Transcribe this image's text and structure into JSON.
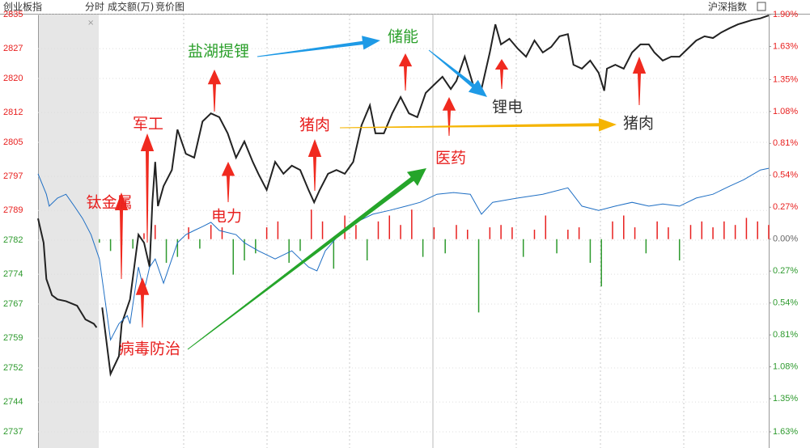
{
  "chart_data": {
    "type": "line",
    "title": "创业板指",
    "header": [
      "分时",
      "成交额(万)",
      "竞价图"
    ],
    "index_button": "沪深指数",
    "xlim": [
      -22,
      240
    ],
    "ylim": [
      2737,
      2835
    ],
    "yticks": [
      2835,
      2827,
      2820,
      2812,
      2805,
      2797,
      2789,
      2782,
      2774,
      2767,
      2759,
      2752,
      2744,
      2737
    ],
    "y2lim": [
      -1.63,
      1.9
    ],
    "y2ticks": [
      {
        "value": 1.9,
        "label": "1.90%"
      },
      {
        "value": 1.63,
        "label": "1.63%"
      },
      {
        "value": 1.35,
        "label": "1.35%"
      },
      {
        "value": 1.08,
        "label": "1.08%"
      },
      {
        "value": 0.81,
        "label": "0.81%"
      },
      {
        "value": 0.54,
        "label": "0.54%"
      },
      {
        "value": 0.27,
        "label": "0.27%"
      },
      {
        "value": 0,
        "label": "0.00%"
      },
      {
        "value": -0.27,
        "label": "0.27%"
      },
      {
        "value": -0.54,
        "label": "0.54%"
      },
      {
        "value": -0.81,
        "label": "0.81%"
      },
      {
        "value": -1.08,
        "label": "1.08%"
      },
      {
        "value": -1.35,
        "label": "1.35%"
      },
      {
        "value": -1.63,
        "label": "1.63%"
      }
    ],
    "up_color": "#e8201f",
    "down_color": "#2e9a2e",
    "flat_color": "#666666",
    "series": [
      {
        "name": "创业板指",
        "color": "#222222",
        "x": [
          -22,
          -20,
          -19,
          -17,
          -15,
          -12,
          -8,
          -5,
          -2,
          -1,
          0,
          1,
          4,
          7,
          8,
          11,
          14,
          16,
          18,
          19,
          20,
          21,
          23,
          26,
          28,
          31,
          34,
          37,
          40,
          43,
          46,
          49,
          52,
          55,
          57,
          60,
          63,
          66,
          69,
          72,
          75,
          77,
          79,
          82,
          85,
          88,
          91,
          94,
          97,
          99,
          102,
          105,
          108,
          111,
          114,
          117,
          120,
          123,
          126,
          128,
          131,
          134,
          137,
          140,
          142,
          144,
          147,
          150,
          153,
          156,
          159,
          162,
          165,
          168,
          170,
          173,
          176,
          179,
          181,
          182,
          185,
          188,
          191,
          194,
          197,
          199,
          202,
          205,
          208,
          211,
          214,
          217,
          220,
          223,
          226,
          229,
          231,
          234,
          237,
          240
        ],
        "values": [
          2787.1,
          2781.4,
          2772.9,
          2769.1,
          2768.1,
          2767.7,
          2766.6,
          2763.4,
          2762.4,
          2761.5,
          null,
          2766.2,
          2750.6,
          2754.8,
          2762.4,
          2768.1,
          2783.3,
          2781.4,
          2775.7,
          2790.9,
          2800.4,
          2790.0,
          2794.7,
          2798.5,
          2808.0,
          2802.3,
          2801.4,
          2809.9,
          2811.8,
          2810.9,
          2807.1,
          2801.4,
          2805.2,
          2800.4,
          2797.6,
          2793.8,
          2800.4,
          2797.6,
          2799.5,
          2798.5,
          2793.8,
          2790.9,
          2793.8,
          2797.6,
          2798.5,
          2797.6,
          2800.4,
          2809.0,
          2813.7,
          2807.1,
          2807.1,
          2811.8,
          2815.6,
          2811.8,
          2810.9,
          2816.6,
          2818.5,
          2820.4,
          2817.5,
          2819.4,
          2825.1,
          2818.5,
          2817.5,
          2826.1,
          2832.7,
          2828.0,
          2829.3,
          2827.0,
          2825.1,
          2828.9,
          2826.1,
          2827.4,
          2829.9,
          2830.4,
          2823.2,
          2822.3,
          2824.2,
          2821.3,
          2817.1,
          2822.3,
          2823.2,
          2822.3,
          2826.1,
          2828.0,
          2828.0,
          2826.1,
          2824.2,
          2825.1,
          2825.1,
          2827.0,
          2828.9,
          2829.9,
          2829.5,
          2830.8,
          2831.8,
          2832.7,
          2833.1,
          2833.7,
          2834.1,
          2834.8
        ]
      },
      {
        "name": "沪深指数",
        "color": "#1f6fc4",
        "x": [
          -22,
          -19,
          -18,
          -15,
          -12,
          -9,
          -6,
          -3,
          -2,
          0,
          2,
          4,
          7,
          10,
          11,
          14,
          16,
          18,
          20,
          23,
          26,
          28,
          31,
          34,
          37,
          40,
          43,
          49,
          52,
          57,
          63,
          69,
          75,
          78,
          81,
          86,
          92,
          98,
          104,
          110,
          115,
          121,
          127,
          133,
          137,
          141,
          150,
          159,
          168,
          173,
          179,
          185,
          191,
          197,
          202,
          208,
          214,
          220,
          226,
          231,
          237,
          240
        ],
        "values": [
          2797.6,
          2792.8,
          2790.0,
          2791.9,
          2792.8,
          2790.0,
          2787.1,
          2783.3,
          2781.4,
          2777.6,
          2768.1,
          2758.6,
          2762.4,
          2764.3,
          2762.4,
          2775.7,
          2770.0,
          2775.7,
          2777.6,
          2771.9,
          2777.6,
          2781.4,
          2783.3,
          2784.3,
          2785.2,
          2786.2,
          2784.3,
          2783.3,
          2781.4,
          2779.5,
          2777.6,
          2779.5,
          2775.7,
          2774.8,
          2779.5,
          2783.3,
          2786.2,
          2788.1,
          2789.0,
          2790.0,
          2790.9,
          2792.8,
          2793.2,
          2792.8,
          2788.1,
          2790.9,
          2791.9,
          2792.8,
          2794.3,
          2790.0,
          2789.0,
          2790.0,
          2790.9,
          2790.0,
          2790.5,
          2790.0,
          2791.9,
          2792.8,
          2794.7,
          2796.2,
          2798.5,
          2798.9
        ]
      },
      {
        "type": "bar",
        "axis": "y2",
        "x": [
          0,
          4,
          8,
          12,
          16,
          20,
          24,
          28,
          32,
          36,
          40,
          44,
          48,
          52,
          56,
          60,
          64,
          68,
          72,
          76,
          80,
          84,
          88,
          92,
          96,
          100,
          104,
          108,
          112,
          116,
          120,
          124,
          128,
          132,
          136,
          140,
          144,
          148,
          152,
          156,
          160,
          164,
          168,
          172,
          176,
          180,
          184,
          188,
          192,
          196,
          200,
          204,
          208,
          212,
          216,
          220,
          224,
          228,
          232,
          236,
          240
        ],
        "values": [
          -0.03,
          -0.1,
          -0.05,
          -0.08,
          0.05,
          0.12,
          -0.2,
          -0.15,
          0.1,
          -0.08,
          0.12,
          0.1,
          -0.3,
          -0.18,
          -0.12,
          0.1,
          0.15,
          -0.2,
          -0.1,
          0.25,
          0.15,
          -0.25,
          0.2,
          0.12,
          -0.18,
          0.15,
          0.2,
          0.12,
          0.25,
          -0.15,
          0.1,
          -0.12,
          0.12,
          0.08,
          -0.62,
          0.1,
          0.12,
          0.1,
          -0.15,
          0.08,
          0.2,
          -0.12,
          0.08,
          0.1,
          -0.2,
          -0.4,
          0.15,
          0.2,
          0.1,
          -0.12,
          0.15,
          0.1,
          -0.18,
          0.12,
          0.15,
          0.1,
          0.15,
          0.12,
          0.18,
          0.15,
          0.12
        ]
      }
    ],
    "annotations": [
      "盐湖提锂",
      "储能",
      "锂电",
      "猪肉",
      "猪肉",
      "医药",
      "军工",
      "钛金属",
      "电力",
      "病毒防治"
    ]
  }
}
